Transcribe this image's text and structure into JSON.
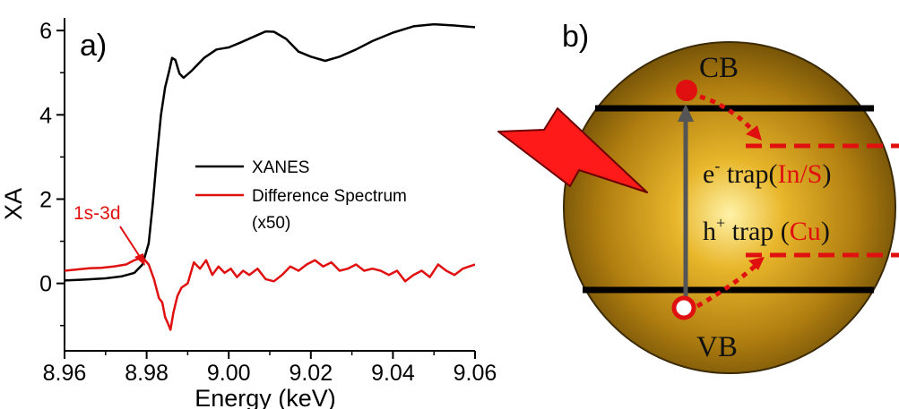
{
  "chart_data": {
    "type": "line",
    "panel_label": "a)",
    "xlabel": "Energy (keV)",
    "ylabel": "XA",
    "xlim": [
      8.96,
      9.06
    ],
    "ylim": [
      -1.6,
      6.3
    ],
    "xticks": [
      "8.96",
      "8.98",
      "9.00",
      "9.02",
      "9.04",
      "9.06"
    ],
    "yticks": [
      "0",
      "2",
      "4",
      "6"
    ],
    "grid": false,
    "legend_position": "center-right",
    "series": [
      {
        "name": "XANES",
        "color": "#000000",
        "x": [
          8.96,
          8.965,
          8.97,
          8.974,
          8.977,
          8.979,
          8.9805,
          8.9815,
          8.9825,
          8.9835,
          8.9845,
          8.9855,
          8.9862,
          8.987,
          8.988,
          8.989,
          8.991,
          8.994,
          8.997,
          9.0,
          9.003,
          9.006,
          9.009,
          9.011,
          9.014,
          9.017,
          9.02,
          9.0235,
          9.027,
          9.031,
          9.035,
          9.04,
          9.045,
          9.05,
          9.055,
          9.06
        ],
        "y": [
          0.07,
          0.09,
          0.12,
          0.17,
          0.25,
          0.45,
          0.95,
          1.9,
          3.0,
          4.0,
          4.65,
          5.05,
          5.35,
          5.3,
          4.98,
          4.88,
          5.05,
          5.35,
          5.55,
          5.6,
          5.72,
          5.85,
          5.98,
          5.97,
          5.8,
          5.5,
          5.38,
          5.28,
          5.38,
          5.55,
          5.75,
          5.95,
          6.1,
          6.15,
          6.12,
          6.08
        ]
      },
      {
        "name": "Difference Spectrum",
        "color": "#e01010",
        "x": [
          8.96,
          8.963,
          8.966,
          8.969,
          8.972,
          8.975,
          8.977,
          8.979,
          8.9805,
          8.9818,
          8.983,
          8.9838,
          8.9845,
          8.9852,
          8.9858,
          8.9865,
          8.9875,
          8.9885,
          8.99,
          8.9915,
          8.993,
          8.9945,
          8.996,
          8.9975,
          8.999,
          9.0005,
          9.002,
          9.0035,
          9.005,
          9.007,
          9.009,
          9.011,
          9.013,
          9.015,
          9.017,
          9.019,
          9.021,
          9.023,
          9.025,
          9.027,
          9.029,
          9.031,
          9.033,
          9.035,
          9.037,
          9.039,
          9.041,
          9.043,
          9.045,
          9.047,
          9.049,
          9.051,
          9.053,
          9.055,
          9.057,
          9.06
        ],
        "y": [
          0.3,
          0.33,
          0.36,
          0.37,
          0.4,
          0.45,
          0.55,
          0.62,
          0.45,
          0.1,
          -0.35,
          -0.45,
          -0.8,
          -0.95,
          -1.1,
          -0.7,
          -0.3,
          -0.1,
          0.0,
          0.5,
          0.35,
          0.55,
          0.2,
          0.4,
          0.25,
          0.35,
          0.15,
          0.3,
          0.2,
          0.35,
          0.1,
          0.05,
          0.2,
          0.4,
          0.3,
          0.45,
          0.55,
          0.4,
          0.5,
          0.3,
          0.35,
          0.45,
          0.3,
          0.35,
          0.3,
          0.2,
          0.3,
          0.05,
          0.2,
          0.3,
          0.15,
          0.45,
          0.3,
          0.2,
          0.35,
          0.45
        ]
      }
    ],
    "legend": [
      {
        "label": "XANES",
        "color": "#000000"
      },
      {
        "label": "Difference Spectrum",
        "color": "#e01010"
      }
    ],
    "legend_note": "(x50)",
    "annotation": {
      "text": "1s-3d",
      "color": "#e01010",
      "x": 8.979,
      "y": 0.6
    }
  },
  "diagram": {
    "panel_label": "b)",
    "cb_label": "CB",
    "vb_label": "VB",
    "electron_trap": {
      "symbol": "e",
      "sup": "-",
      "word": " trap(",
      "element": "In/S",
      "close": ")"
    },
    "hole_trap": {
      "symbol": "h",
      "sup": "+",
      "word": " trap (",
      "element": "Cu",
      "close": ")"
    }
  }
}
